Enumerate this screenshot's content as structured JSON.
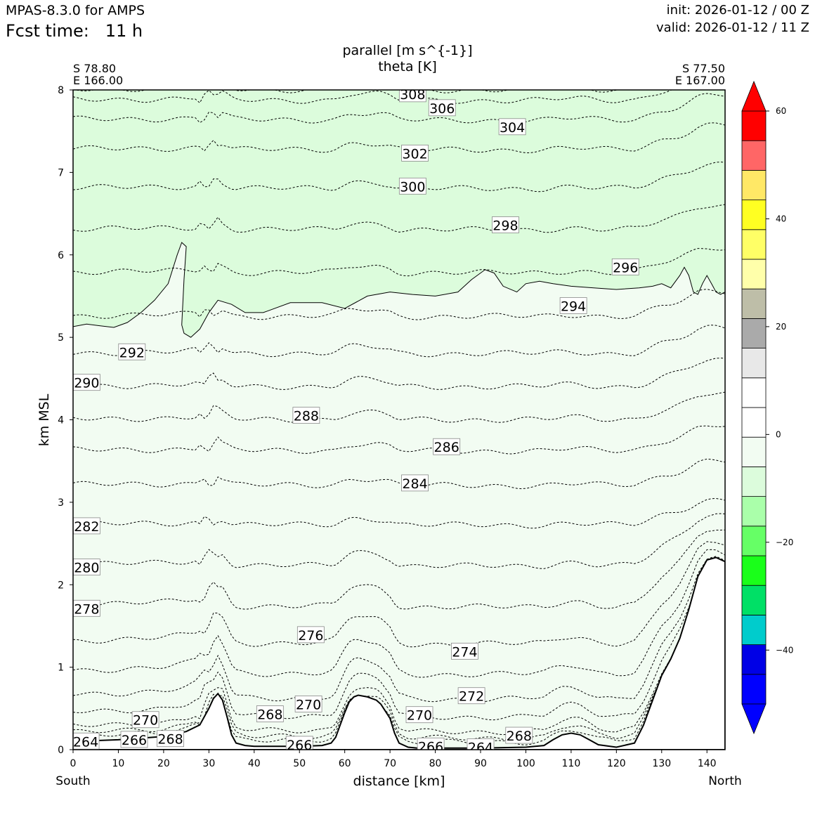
{
  "header": {
    "model": "MPAS-8.3.0 for AMPS",
    "fcst_label": "Fcst time:",
    "fcst_value": "11 h",
    "init": "init: 2026-01-12 / 00 Z",
    "valid": "valid: 2026-01-12 / 11 Z"
  },
  "chart_data": {
    "type": "cross-section contour",
    "title_line1": "parallel [m s^{-1}]",
    "title_line2": "theta [K]",
    "xlabel": "distance [km]",
    "ylabel": "km MSL",
    "xlim": [
      0,
      144
    ],
    "ylim": [
      0,
      8
    ],
    "x_ticks": [
      0,
      10,
      20,
      30,
      40,
      50,
      60,
      70,
      80,
      90,
      100,
      110,
      120,
      130,
      140
    ],
    "y_ticks": [
      0,
      1,
      2,
      3,
      4,
      5,
      6,
      7,
      8
    ],
    "start_label": "South",
    "end_label": "North",
    "start_coords": [
      "S 78.80",
      "E 166.00"
    ],
    "end_coords": [
      "S 77.50",
      "E 167.00"
    ],
    "terrain": {
      "x": [
        0,
        5,
        10,
        15,
        20,
        25,
        28,
        30,
        31,
        32,
        33,
        34,
        35,
        36,
        38,
        40,
        45,
        50,
        55,
        57,
        58,
        59,
        60,
        61,
        62,
        63,
        65,
        67,
        68,
        70,
        71,
        72,
        74,
        76,
        80,
        90,
        100,
        104,
        106,
        108,
        110,
        112,
        114,
        116,
        120,
        124,
        126,
        128,
        130,
        132,
        134,
        136,
        138,
        140,
        142,
        144
      ],
      "y": [
        0.1,
        0.11,
        0.12,
        0.14,
        0.16,
        0.22,
        0.3,
        0.5,
        0.62,
        0.68,
        0.6,
        0.4,
        0.18,
        0.08,
        0.05,
        0.04,
        0.04,
        0.04,
        0.05,
        0.08,
        0.15,
        0.3,
        0.45,
        0.58,
        0.64,
        0.66,
        0.64,
        0.6,
        0.55,
        0.38,
        0.2,
        0.08,
        0.03,
        0.02,
        0.02,
        0.02,
        0.03,
        0.05,
        0.12,
        0.18,
        0.2,
        0.18,
        0.12,
        0.06,
        0.03,
        0.08,
        0.3,
        0.6,
        0.9,
        1.1,
        1.35,
        1.7,
        2.1,
        2.3,
        2.33,
        2.28
      ]
    },
    "shading": {
      "zero_contour_x": [
        0,
        3,
        6,
        9,
        12,
        15,
        18,
        21,
        23,
        24,
        25,
        24.5,
        24,
        24.5,
        26,
        28,
        30,
        32,
        35,
        38,
        42,
        48,
        55,
        60,
        65,
        70,
        75,
        80,
        85,
        88,
        91,
        93,
        95,
        98,
        100,
        103,
        106,
        110,
        115,
        120,
        125,
        128,
        130,
        132,
        134,
        135,
        136,
        137,
        138,
        139,
        140,
        141,
        142,
        143,
        144
      ],
      "zero_contour_y": [
        5.13,
        5.16,
        5.14,
        5.12,
        5.18,
        5.3,
        5.45,
        5.65,
        6.0,
        6.15,
        6.1,
        5.7,
        5.15,
        5.05,
        5.0,
        5.1,
        5.3,
        5.45,
        5.4,
        5.3,
        5.3,
        5.42,
        5.42,
        5.35,
        5.5,
        5.55,
        5.52,
        5.5,
        5.55,
        5.7,
        5.82,
        5.78,
        5.62,
        5.55,
        5.65,
        5.68,
        5.65,
        5.62,
        5.6,
        5.58,
        5.6,
        5.62,
        5.65,
        5.6,
        5.75,
        5.85,
        5.75,
        5.55,
        5.52,
        5.65,
        5.75,
        5.65,
        5.55,
        5.52,
        5.55
      ],
      "upper_class": "-10 to -5",
      "lower_class": "-5 to 0",
      "upper_color": "#dcfcdc",
      "lower_color": "#f2fcf2"
    },
    "theta_levels": [
      {
        "value": 264,
        "y": 0.07
      },
      {
        "value": 266,
        "y": 0.12
      },
      {
        "value": 268,
        "y": 0.2
      },
      {
        "value": 270,
        "y": 0.38
      },
      {
        "value": 272,
        "y": 0.6
      },
      {
        "value": 274,
        "y": 0.9
      },
      {
        "value": 276,
        "y": 1.27
      },
      {
        "value": 278,
        "y": 1.72
      },
      {
        "value": 280,
        "y": 2.22
      },
      {
        "value": 282,
        "y": 2.72
      },
      {
        "value": 284,
        "y": 3.2
      },
      {
        "value": 286,
        "y": 3.62
      },
      {
        "value": 288,
        "y": 4.0
      },
      {
        "value": 290,
        "y": 4.4
      },
      {
        "value": 292,
        "y": 4.8
      },
      {
        "value": 294,
        "y": 5.25
      },
      {
        "value": 296,
        "y": 5.78
      },
      {
        "value": 298,
        "y": 6.3
      },
      {
        "value": 300,
        "y": 6.8
      },
      {
        "value": 302,
        "y": 7.27
      },
      {
        "value": 304,
        "y": 7.63
      },
      {
        "value": 306,
        "y": 7.87
      },
      {
        "value": 308,
        "y": 8.0
      }
    ],
    "contour_labels": [
      {
        "text": "308",
        "x": 75,
        "y": 7.95
      },
      {
        "text": "306",
        "x": 81.5,
        "y": 7.78
      },
      {
        "text": "304",
        "x": 97,
        "y": 7.55
      },
      {
        "text": "302",
        "x": 75.5,
        "y": 7.23
      },
      {
        "text": "300",
        "x": 75,
        "y": 6.83
      },
      {
        "text": "298",
        "x": 95.5,
        "y": 6.36
      },
      {
        "text": "296",
        "x": 122,
        "y": 5.85
      },
      {
        "text": "294",
        "x": 110.5,
        "y": 5.38
      },
      {
        "text": "292",
        "x": 13,
        "y": 4.82
      },
      {
        "text": "290",
        "x": 3,
        "y": 4.45
      },
      {
        "text": "288",
        "x": 51.5,
        "y": 4.05
      },
      {
        "text": "286",
        "x": 82.5,
        "y": 3.67
      },
      {
        "text": "284",
        "x": 75.5,
        "y": 3.23
      },
      {
        "text": "282",
        "x": 3,
        "y": 2.71
      },
      {
        "text": "280",
        "x": 3,
        "y": 2.21
      },
      {
        "text": "278",
        "x": 3,
        "y": 1.71
      },
      {
        "text": "276",
        "x": 52.5,
        "y": 1.39
      },
      {
        "text": "274",
        "x": 86.5,
        "y": 1.19
      },
      {
        "text": "272",
        "x": 88,
        "y": 0.65
      },
      {
        "text": "270",
        "x": 52,
        "y": 0.55
      },
      {
        "text": "270",
        "x": 76.5,
        "y": 0.42
      },
      {
        "text": "270",
        "x": 16,
        "y": 0.36
      },
      {
        "text": "268",
        "x": 43.5,
        "y": 0.43
      },
      {
        "text": "268",
        "x": 98.5,
        "y": 0.17
      },
      {
        "text": "268",
        "x": 21.5,
        "y": 0.13
      },
      {
        "text": "266",
        "x": 13.5,
        "y": 0.12
      },
      {
        "text": "266",
        "x": 50,
        "y": 0.06
      },
      {
        "text": "266",
        "x": 79,
        "y": 0.04
      },
      {
        "text": "264",
        "x": 2.8,
        "y": 0.1
      },
      {
        "text": "264",
        "x": 90,
        "y": 0.03
      }
    ],
    "colorbar": {
      "ticks": [
        -40,
        -20,
        0,
        20,
        40,
        60
      ],
      "min": -50,
      "max": 60,
      "colors": [
        "#0000ff",
        "#0000e6",
        "#00cccc",
        "#00e066",
        "#1aff1a",
        "#66ff66",
        "#aaffaa",
        "#dcfcdc",
        "#f2fcf2",
        "#ffffff",
        "#ffffff",
        "#e8e8e8",
        "#aaaaaa",
        "#bebea8",
        "#ffffaa",
        "#ffff66",
        "#ffff22",
        "#ffe866",
        "#ff6666",
        "#ff0000"
      ]
    }
  }
}
